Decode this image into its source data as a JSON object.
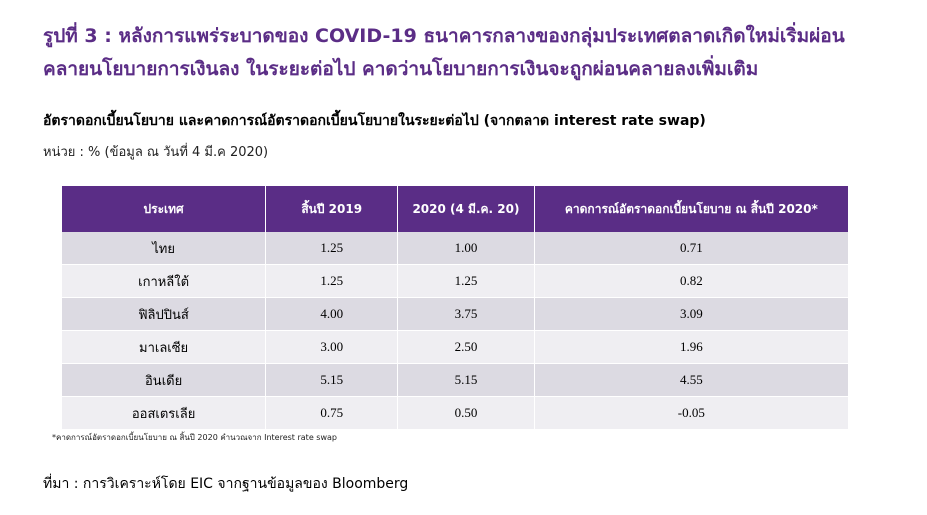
{
  "title_line1": "รูปที่ 3 : หลังการแพร่ระบาดของ COVID-19 ธนาคารกลางของกลุ่มประเทศตลาดเกิดใหม่เริ่มผ่อน",
  "title_line2": "คลายนโยบายการเงินลง ในระยะต่อไป คาดว่านโยบายการเงินจะถูกผ่อนคลายลงเพิ่มเติม",
  "subtitle": "อัตราดอกเบี้ยนโยบาย และคาดการณ์อัตราดอกเบี้ยนโยบายในระยะต่อไป (จากตลาด interest rate swap)",
  "unit": "หน่วย : % (ข้อมูล ณ วันที่ 4 มี.ค 2020)",
  "footnote": "*คาดการณ์อัตราดอกเบี้ยนโยบาย ณ สิ้นปี 2020 คำนวณจาก Interest rate swap",
  "source": "ที่มา : การวิเคราะห์โดย EIC จากฐานข้อมูลของ Bloomberg",
  "colors": {
    "title": "#5b2d86",
    "header_bg": "#5a2d86",
    "header_text": "#ffffff",
    "row_dark": "#dcdae2",
    "row_light": "#efeef2"
  },
  "chart_data": {
    "type": "table",
    "columns": [
      "ประเทศ",
      "สิ้นปี 2019",
      "2020 (4 มี.ค. 20)",
      "คาดการณ์อัตราดอกเบี้ยนโยบาย ณ สิ้นปี 2020*"
    ],
    "rows": [
      [
        "ไทย",
        "1.25",
        "1.00",
        "0.71"
      ],
      [
        "เกาหลีใต้",
        "1.25",
        "1.25",
        "0.82"
      ],
      [
        "ฟิลิปปินส์",
        "4.00",
        "3.75",
        "3.09"
      ],
      [
        "มาเลเซีย",
        "3.00",
        "2.50",
        "1.96"
      ],
      [
        "อินเดีย",
        "5.15",
        "5.15",
        "4.55"
      ],
      [
        "ออสเตรเลีย",
        "0.75",
        "0.50",
        "-0.05"
      ]
    ]
  }
}
